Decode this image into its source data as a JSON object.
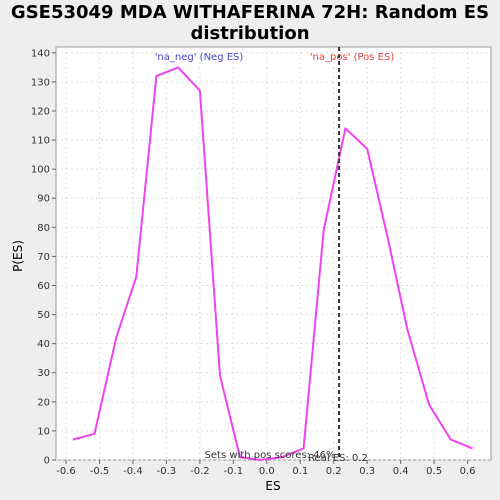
{
  "chart_data": {
    "type": "line",
    "title_line1": "GSE53049 MDA WITHAFERINA 72H: Random ES",
    "title_line2": "distribution",
    "xlabel": "ES",
    "ylabel": "P(ES)",
    "xlim": [
      -0.63,
      0.67
    ],
    "ylim": [
      0,
      142
    ],
    "x_ticks": [
      -0.6,
      -0.5,
      -0.4,
      -0.3,
      -0.2,
      -0.1,
      0.0,
      0.1,
      0.2,
      0.3,
      0.4,
      0.5,
      0.6
    ],
    "x_tick_labels": [
      "-0.6",
      "-0.5",
      "-0.4",
      "-0.3",
      "-0.2",
      "-0.1",
      "0.0",
      "0.1",
      "0.2",
      "0.3",
      "0.4",
      "0.5",
      "0.6"
    ],
    "y_ticks": [
      0,
      10,
      20,
      30,
      40,
      50,
      60,
      70,
      80,
      90,
      100,
      110,
      120,
      130,
      140
    ],
    "y_tick_labels": [
      "0",
      "10",
      "20",
      "30",
      "40",
      "50",
      "60",
      "70",
      "80",
      "90",
      "100",
      "110",
      "120",
      "130",
      "140"
    ],
    "grid": true,
    "series": [
      {
        "color": "#ee44ee",
        "x": [
          -0.58,
          -0.515,
          -0.45,
          -0.39,
          -0.33,
          -0.265,
          -0.2,
          -0.14,
          -0.08,
          -0.02,
          0.045,
          0.11,
          0.17,
          0.235,
          0.3,
          0.36,
          0.42,
          0.485,
          0.55,
          0.615
        ],
        "y": [
          7,
          9,
          42,
          63,
          132,
          135,
          127,
          29,
          1,
          0,
          1,
          4,
          79,
          114,
          107,
          77,
          45,
          19,
          7,
          4
        ]
      }
    ],
    "marker_line": {
      "x": 0.216,
      "color": "#333333"
    },
    "neg_label": {
      "text": "'na_neg' (Neg ES)",
      "color": "#4444cc"
    },
    "pos_label": {
      "text": "'na_pos' (Pos ES)",
      "color": "#dd4444"
    },
    "pos_scores_text": "Sets with pos scores: 46%",
    "real_es_text": "Real ES: 0.2"
  }
}
